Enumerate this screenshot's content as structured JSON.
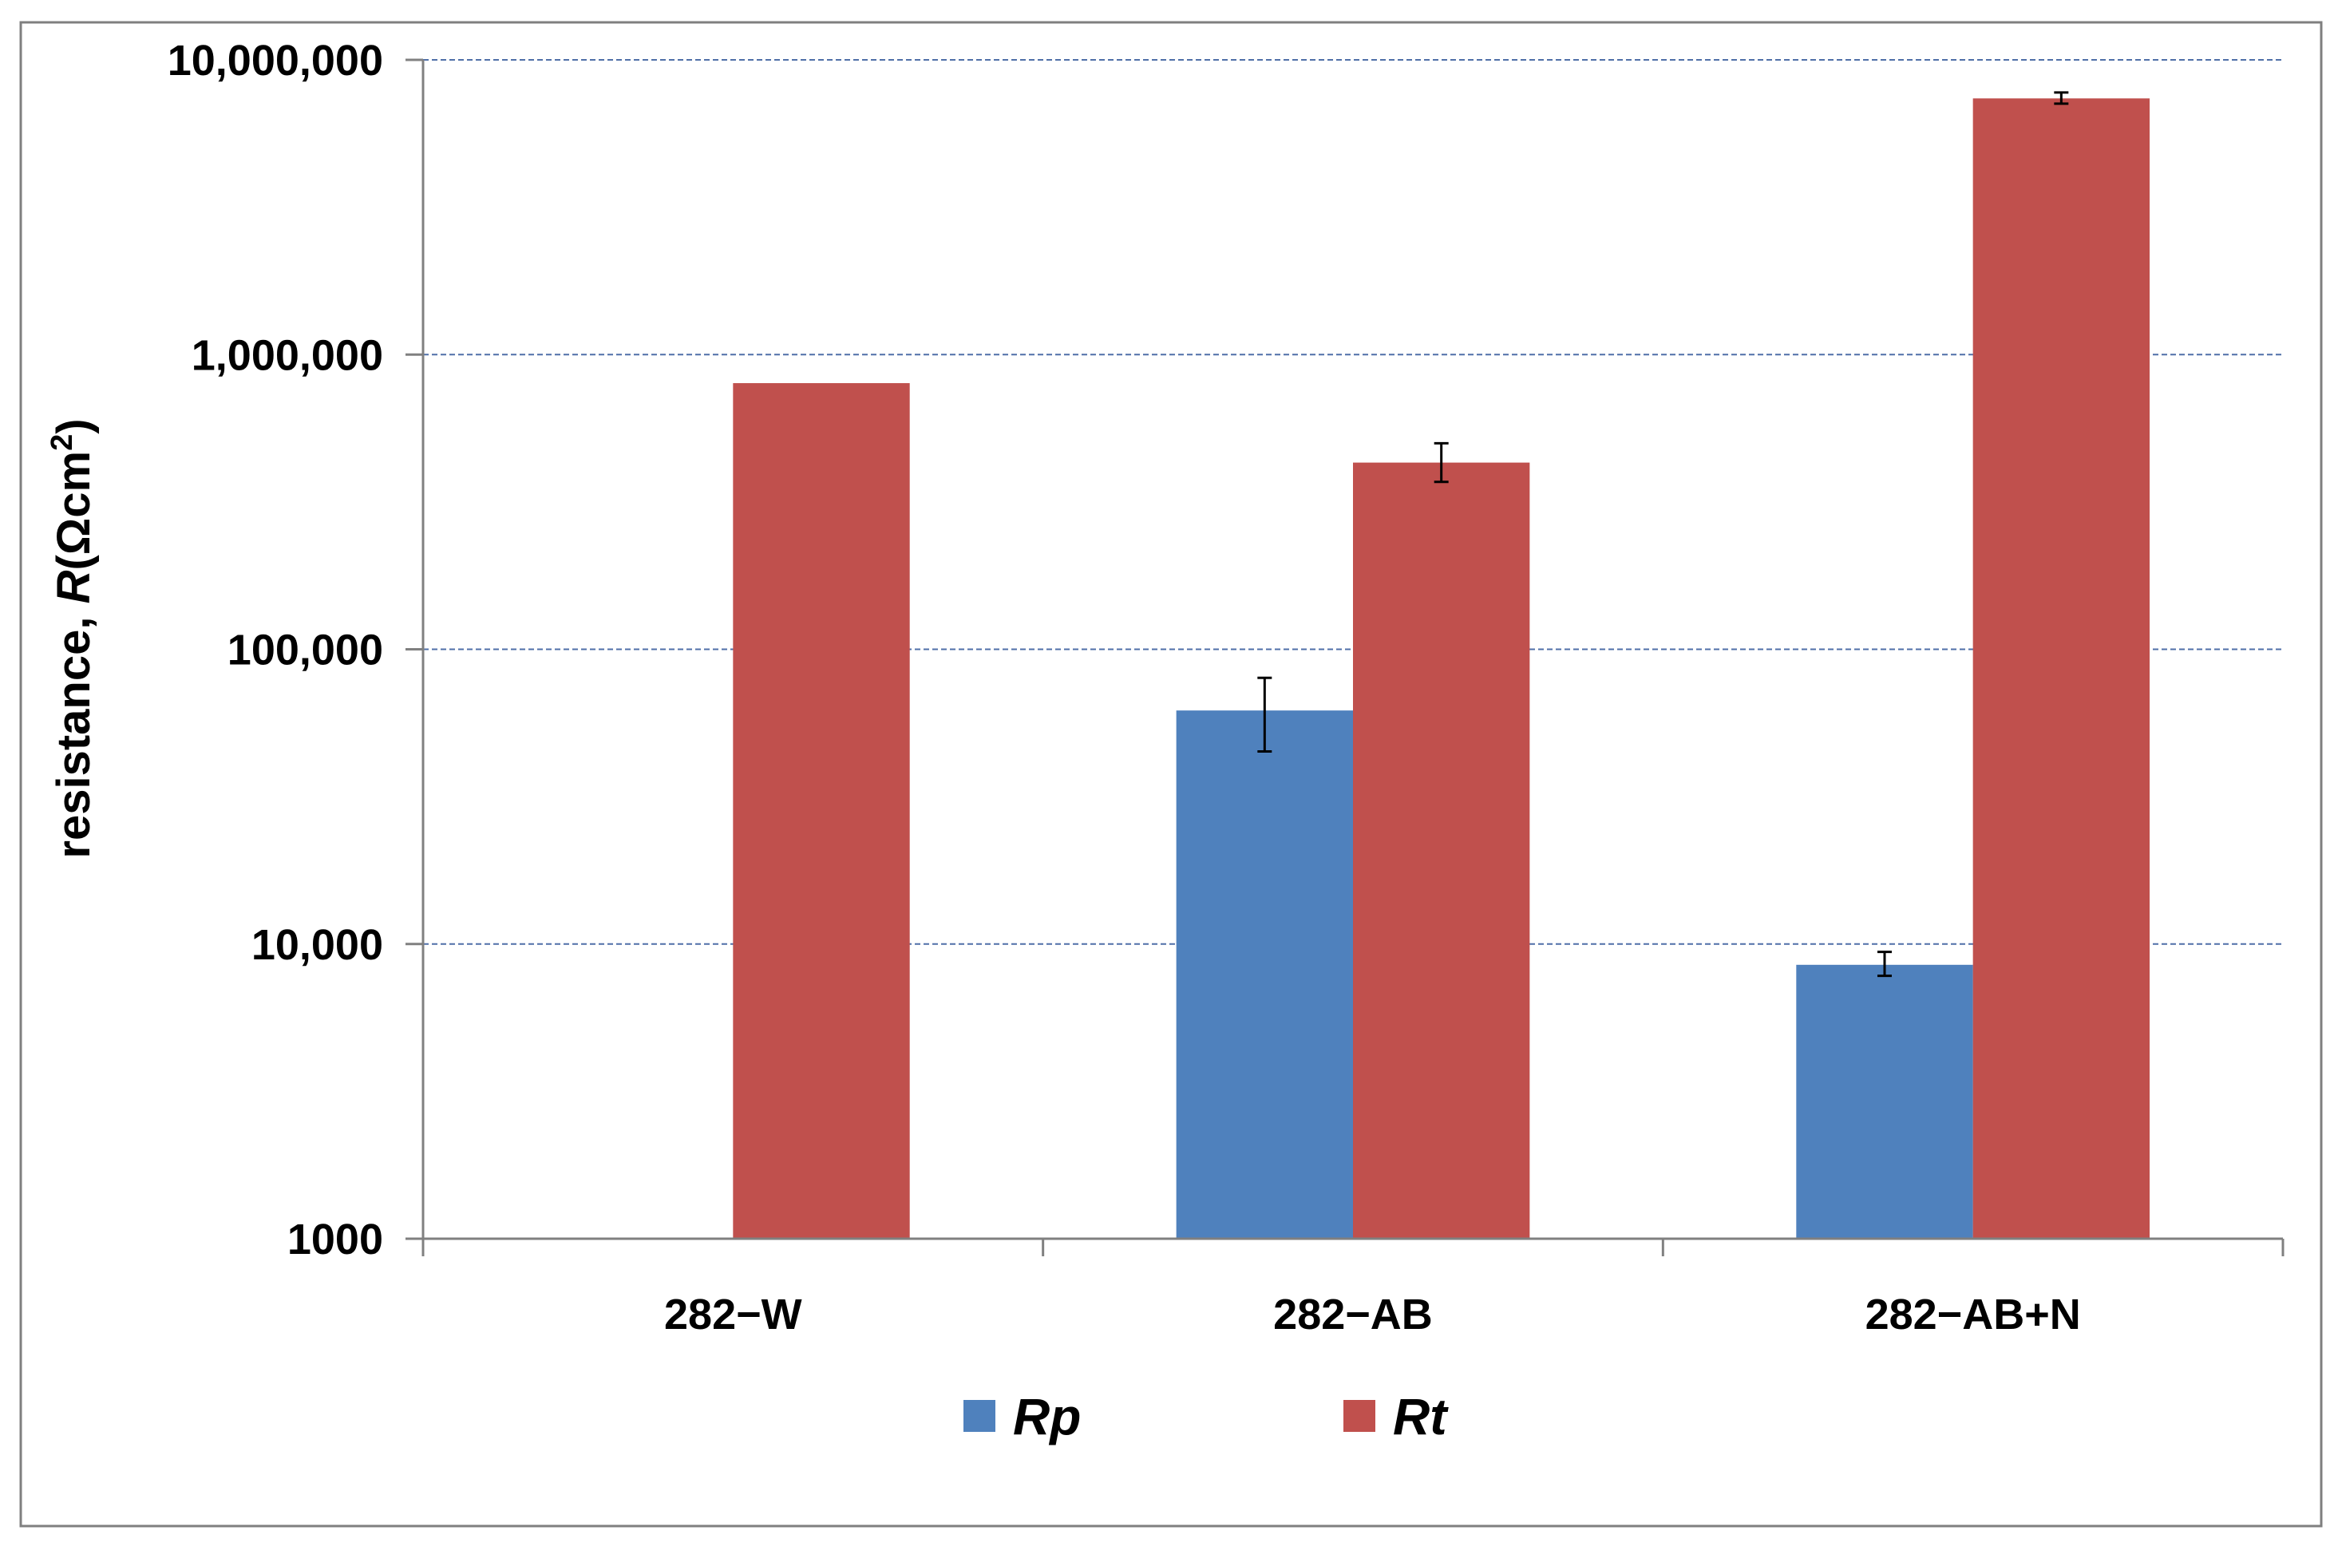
{
  "chart_data": {
    "type": "bar",
    "categories": [
      "282−W",
      "282−AB",
      "282−AB+N"
    ],
    "series": [
      {
        "name": "Rp",
        "color": "#4F81BD",
        "values": [
          null,
          62000,
          8500
        ],
        "error_low": [
          null,
          45000,
          7800
        ],
        "error_high": [
          null,
          80000,
          9400
        ]
      },
      {
        "name": "Rt",
        "color": "#C0504D",
        "values": [
          800000,
          430000,
          7400000
        ],
        "error_low": [
          null,
          370000,
          7100000
        ],
        "error_high": [
          null,
          500000,
          7750000
        ]
      }
    ],
    "ylabel": {
      "prefix": "resistance, ",
      "symbol": "R",
      "unit_open": "(Ωcm",
      "unit_sup": "2",
      "unit_close": ")"
    },
    "yscale": "log",
    "ylim": [
      1000,
      10000000
    ],
    "yticks": [
      1000,
      10000,
      100000,
      1000000,
      10000000
    ],
    "ytick_labels": [
      "1000",
      "10,000",
      "100,000",
      "1,000,000",
      "10,000,000"
    ],
    "grid": true,
    "grid_color": "#4F6FA8",
    "legend_position": "bottom"
  }
}
